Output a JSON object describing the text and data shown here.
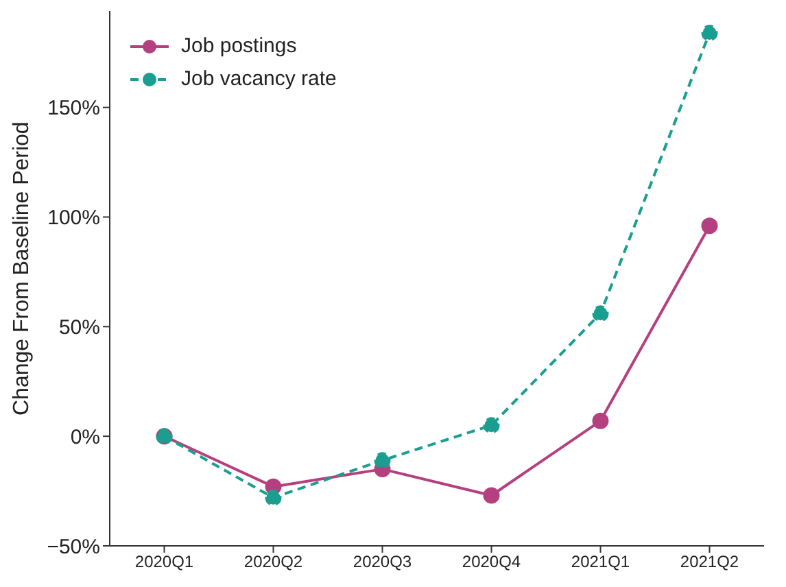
{
  "chart_data": {
    "type": "line",
    "ylabel": "Change From Baseline Period",
    "categories": [
      "2020Q1",
      "2020Q2",
      "2020Q3",
      "2020Q4",
      "2021Q1",
      "2021Q2"
    ],
    "series": [
      {
        "name": "Job postings",
        "color": "#b5407f",
        "values": [
          0,
          -23,
          -15,
          -27,
          7,
          96
        ],
        "line_style": "solid"
      },
      {
        "name": "Job vacancy rate",
        "color": "#1a9e8f",
        "values": [
          0,
          -28,
          -11,
          5,
          56,
          184
        ],
        "line_style": "dashed"
      }
    ],
    "ylim": [
      -50,
      194
    ],
    "yticks": [
      {
        "value": -50,
        "label": "−50%"
      },
      {
        "value": 0,
        "label": "0%"
      },
      {
        "value": 50,
        "label": "50%"
      },
      {
        "value": 100,
        "label": "100%"
      },
      {
        "value": 150,
        "label": "150%"
      }
    ],
    "marker": "circle",
    "grid": false,
    "legend": "top left"
  }
}
